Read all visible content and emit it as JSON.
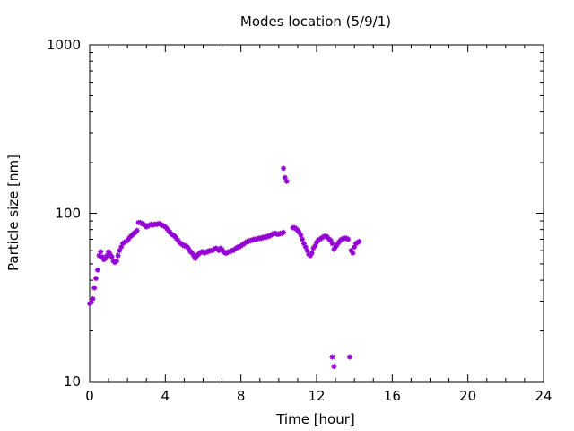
{
  "chart_data": {
    "type": "scatter",
    "title": "Modes location (5/9/1)",
    "xlabel": "Time [hour]",
    "ylabel": "Particle size [nm]",
    "xlim": [
      0,
      24
    ],
    "ylim": [
      10,
      1000
    ],
    "yscale": "log",
    "x_ticks": [
      "0",
      "4",
      "8",
      "12",
      "16",
      "20",
      "24"
    ],
    "y_ticks": [
      "10",
      "100",
      "1000"
    ],
    "grid": false,
    "marker_color": "#9400d3",
    "series": [
      {
        "points": [
          [
            0.0,
            29
          ],
          [
            0.08,
            29.5
          ],
          [
            0.17,
            31
          ],
          [
            0.25,
            36
          ],
          [
            0.33,
            41
          ],
          [
            0.42,
            46
          ],
          [
            0.5,
            56
          ],
          [
            0.58,
            59
          ],
          [
            0.67,
            55
          ],
          [
            0.75,
            53
          ],
          [
            0.83,
            54
          ],
          [
            0.92,
            56
          ],
          [
            1.0,
            59
          ],
          [
            1.08,
            57
          ],
          [
            1.17,
            55
          ],
          [
            1.25,
            52
          ],
          [
            1.33,
            51
          ],
          [
            1.42,
            52
          ],
          [
            1.5,
            56
          ],
          [
            1.58,
            60
          ],
          [
            1.67,
            63
          ],
          [
            1.75,
            66
          ],
          [
            1.83,
            67
          ],
          [
            1.92,
            68
          ],
          [
            2.0,
            69
          ],
          [
            2.08,
            71
          ],
          [
            2.17,
            73
          ],
          [
            2.25,
            74
          ],
          [
            2.33,
            76
          ],
          [
            2.42,
            77
          ],
          [
            2.5,
            79
          ],
          [
            2.58,
            88
          ],
          [
            2.67,
            88
          ],
          [
            2.75,
            87
          ],
          [
            2.83,
            86
          ],
          [
            2.92,
            85
          ],
          [
            3.0,
            83
          ],
          [
            3.08,
            84
          ],
          [
            3.17,
            85
          ],
          [
            3.25,
            86
          ],
          [
            3.33,
            85
          ],
          [
            3.42,
            86
          ],
          [
            3.5,
            86
          ],
          [
            3.58,
            86
          ],
          [
            3.67,
            87
          ],
          [
            3.75,
            86
          ],
          [
            3.83,
            85
          ],
          [
            3.92,
            84
          ],
          [
            4.0,
            83
          ],
          [
            4.08,
            81
          ],
          [
            4.17,
            79
          ],
          [
            4.25,
            77
          ],
          [
            4.33,
            75
          ],
          [
            4.42,
            74
          ],
          [
            4.5,
            73
          ],
          [
            4.58,
            71
          ],
          [
            4.67,
            69
          ],
          [
            4.75,
            67
          ],
          [
            4.83,
            66
          ],
          [
            4.92,
            65
          ],
          [
            5.0,
            64
          ],
          [
            5.08,
            64
          ],
          [
            5.17,
            63
          ],
          [
            5.25,
            61
          ],
          [
            5.33,
            59
          ],
          [
            5.42,
            58
          ],
          [
            5.5,
            56
          ],
          [
            5.58,
            54
          ],
          [
            5.67,
            56
          ],
          [
            5.75,
            57
          ],
          [
            5.83,
            58
          ],
          [
            5.92,
            59
          ],
          [
            6.0,
            59
          ],
          [
            6.08,
            58
          ],
          [
            6.17,
            59
          ],
          [
            6.25,
            59
          ],
          [
            6.33,
            60
          ],
          [
            6.42,
            60
          ],
          [
            6.5,
            60
          ],
          [
            6.58,
            61
          ],
          [
            6.67,
            62
          ],
          [
            6.75,
            61
          ],
          [
            6.83,
            60
          ],
          [
            6.92,
            62
          ],
          [
            7.0,
            61
          ],
          [
            7.08,
            59
          ],
          [
            7.17,
            58
          ],
          [
            7.25,
            58
          ],
          [
            7.33,
            59
          ],
          [
            7.42,
            59
          ],
          [
            7.5,
            60
          ],
          [
            7.58,
            60
          ],
          [
            7.67,
            61
          ],
          [
            7.75,
            62
          ],
          [
            7.83,
            63
          ],
          [
            7.92,
            63
          ],
          [
            8.0,
            64
          ],
          [
            8.08,
            65
          ],
          [
            8.17,
            66
          ],
          [
            8.25,
            67
          ],
          [
            8.33,
            68
          ],
          [
            8.42,
            68
          ],
          [
            8.5,
            69
          ],
          [
            8.58,
            69
          ],
          [
            8.67,
            70
          ],
          [
            8.75,
            70
          ],
          [
            8.83,
            70
          ],
          [
            8.92,
            71
          ],
          [
            9.0,
            71
          ],
          [
            9.08,
            71
          ],
          [
            9.17,
            72
          ],
          [
            9.25,
            72
          ],
          [
            9.33,
            72
          ],
          [
            9.42,
            73
          ],
          [
            9.5,
            73
          ],
          [
            9.58,
            74
          ],
          [
            9.67,
            75
          ],
          [
            9.75,
            76
          ],
          [
            9.83,
            76
          ],
          [
            9.92,
            75
          ],
          [
            10.0,
            75
          ],
          [
            10.08,
            76
          ],
          [
            10.17,
            76
          ],
          [
            10.25,
            77
          ],
          [
            10.25,
            185
          ],
          [
            10.33,
            163
          ],
          [
            10.42,
            155
          ],
          [
            10.75,
            82
          ],
          [
            10.83,
            82
          ],
          [
            10.92,
            81
          ],
          [
            11.0,
            79
          ],
          [
            11.08,
            77
          ],
          [
            11.17,
            74
          ],
          [
            11.25,
            70
          ],
          [
            11.33,
            66
          ],
          [
            11.42,
            63
          ],
          [
            11.5,
            60
          ],
          [
            11.58,
            57
          ],
          [
            11.67,
            56
          ],
          [
            11.75,
            58
          ],
          [
            11.83,
            62
          ],
          [
            11.92,
            64
          ],
          [
            12.0,
            67
          ],
          [
            12.08,
            69
          ],
          [
            12.17,
            70
          ],
          [
            12.25,
            71
          ],
          [
            12.33,
            72
          ],
          [
            12.42,
            73
          ],
          [
            12.5,
            73
          ],
          [
            12.58,
            72
          ],
          [
            12.67,
            70
          ],
          [
            12.75,
            69
          ],
          [
            12.83,
            66
          ],
          [
            12.83,
            14
          ],
          [
            12.92,
            12.3
          ],
          [
            12.92,
            61
          ],
          [
            13.0,
            63
          ],
          [
            13.08,
            65
          ],
          [
            13.17,
            67
          ],
          [
            13.25,
            69
          ],
          [
            13.33,
            70
          ],
          [
            13.42,
            71
          ],
          [
            13.5,
            71
          ],
          [
            13.58,
            71
          ],
          [
            13.67,
            70
          ],
          [
            13.75,
            14
          ],
          [
            13.83,
            60
          ],
          [
            13.92,
            58
          ],
          [
            14.0,
            63
          ],
          [
            14.08,
            66
          ],
          [
            14.17,
            67
          ],
          [
            14.25,
            68
          ]
        ]
      }
    ]
  }
}
